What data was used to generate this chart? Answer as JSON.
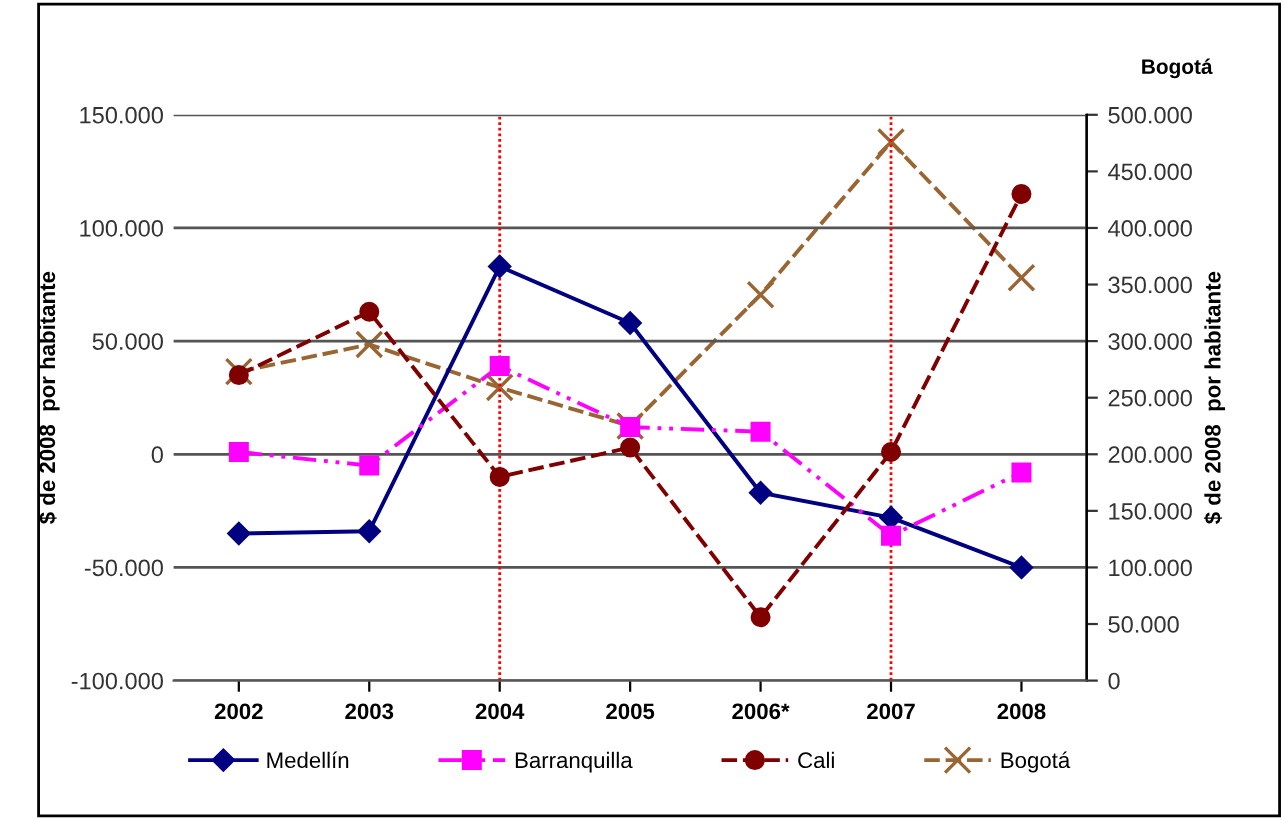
{
  "chart_data": {
    "type": "line",
    "ylabel": "$ de 2008  por habitante",
    "y2label": "$ de 2008  por habitante",
    "annotations": [
      "Bogotá"
    ],
    "categories": [
      "2002",
      "2003",
      "2004",
      "2005",
      "2006*",
      "2007",
      "2008"
    ],
    "series": [
      {
        "name": "Medellín",
        "color": "#000080",
        "marker": "diamond",
        "line_style": "solid",
        "values": [
          -35000,
          -34000,
          83000,
          58000,
          -17000,
          -28000,
          -50000
        ]
      },
      {
        "name": "Barranquilla",
        "color": "#ff00ff",
        "marker": "square",
        "line_style": "dotted",
        "values": [
          1000,
          -5000,
          39000,
          12000,
          10000,
          -36000,
          -8000
        ]
      },
      {
        "name": "Cali",
        "color": "#800000",
        "marker": "circle",
        "line_style": "dashed",
        "values": [
          35000,
          63000,
          -10000,
          3000,
          -72000,
          1000,
          115000
        ]
      },
      {
        "name": "Bogotá",
        "color": "#996633",
        "marker": "cross",
        "line_style": "dashed",
        "axis": "y2",
        "values": [
          273000,
          297000,
          259000,
          225000,
          341000,
          476000,
          356000
        ]
      }
    ],
    "ylim": [
      -100000,
      150000
    ],
    "yticks": [
      {
        "value": -100000,
        "label": "-100.000"
      },
      {
        "value": -50000,
        "label": "-50.000"
      },
      0,
      {
        "value": 50000,
        "label": "50.000"
      },
      {
        "value": 100000,
        "label": "100.000"
      },
      {
        "value": 150000,
        "label": "150.000"
      }
    ],
    "y2lim": [
      0,
      500000
    ],
    "y2ticks": [
      0,
      {
        "value": 50000,
        "label": "50.000"
      },
      {
        "value": 100000,
        "label": "100.000"
      },
      {
        "value": 150000,
        "label": "150.000"
      },
      {
        "value": 200000,
        "label": "200.000"
      },
      {
        "value": 250000,
        "label": "250.000"
      },
      {
        "value": 300000,
        "label": "300.000"
      },
      {
        "value": 350000,
        "label": "350.000"
      },
      {
        "value": 400000,
        "label": "400.000"
      },
      {
        "value": 450000,
        "label": "450.000"
      },
      {
        "value": 500000,
        "label": "500.000"
      }
    ],
    "ref_lines": [
      {
        "axis": "x",
        "value": "2004",
        "color": "#ff0000",
        "line_style": "dotted"
      },
      {
        "axis": "x",
        "value": "2007",
        "color": "#ff0000",
        "line_style": "dotted"
      }
    ],
    "grid": "y",
    "legend": "bottom"
  }
}
